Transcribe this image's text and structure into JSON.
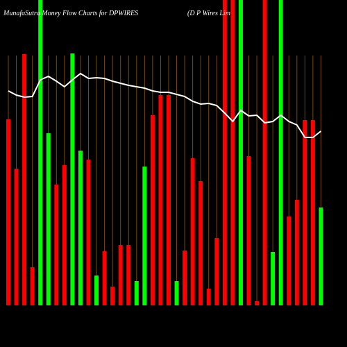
{
  "chart_data": {
    "type": "bar",
    "title": "MunafaSutra  Money Flow  Charts for DPWIRES",
    "subtitle": "(D P Wires Lim",
    "values": [
      268,
      197,
      362,
      55,
      440,
      248,
      174,
      202,
      363,
      223,
      210,
      43,
      78,
      27,
      87,
      87,
      35,
      200,
      274,
      303,
      303,
      35,
      79,
      212,
      179,
      24,
      97,
      440,
      440,
      440,
      215,
      6,
      440,
      77,
      440,
      128,
      152,
      267,
      267,
      141
    ],
    "bar_colors": [
      "#ff0000",
      "#ff0000",
      "#ff0000",
      "#ff0000",
      "#00ff00",
      "#00ff00",
      "#ff0000",
      "#ff0000",
      "#00ff00",
      "#00ff00",
      "#ff0000",
      "#00ff00",
      "#ff0000",
      "#ff0000",
      "#ff0000",
      "#ff0000",
      "#00ff00",
      "#00ff00",
      "#ff0000",
      "#ff0000",
      "#ff0000",
      "#00ff00",
      "#ff0000",
      "#ff0000",
      "#ff0000",
      "#ff0000",
      "#ff0000",
      "#ff0000",
      "#ff0000",
      "#00ff00",
      "#ff0000",
      "#ff0000",
      "#ff0000",
      "#00ff00",
      "#00ff00",
      "#ff0000",
      "#ff0000",
      "#ff0000",
      "#ff0000",
      "#00ff00"
    ],
    "line_values": [
      309,
      303,
      300,
      301,
      325,
      330,
      323,
      315,
      325,
      334,
      327,
      328,
      327,
      323,
      320,
      317,
      315,
      313,
      309,
      307,
      307,
      304,
      301,
      294,
      290,
      291,
      288,
      277,
      265,
      281,
      273,
      274,
      263,
      265,
      274,
      265,
      260,
      242,
      242,
      251
    ],
    "line_color": "#ffffff",
    "ylim": [
      0,
      440
    ],
    "grid_color": "#7a4a00"
  }
}
